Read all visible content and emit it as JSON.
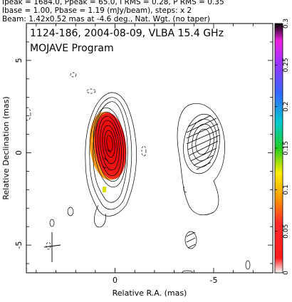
{
  "header": {
    "line1": "Ipeak = 1684.0, Ppeak = 65.0, I RMS = 0.28, P RMS = 0.35",
    "line2": "Ibase = 1.00, Pbase = 1.19 (mJy/beam), steps: x 2",
    "line3": "Beam: 1.42x0.52 mas at -4.6 deg., Nat. Wgt. (no taper)"
  },
  "chart_data": {
    "type": "heatmap",
    "title": "1124-186, 2004-08-09, VLBA 15.4 GHz",
    "subtitle": "MOJAVE Program",
    "xlabel": "Relative R.A. (mas)",
    "ylabel": "Relative Declination (mas)",
    "xlim": [
      4.5,
      -8.0
    ],
    "ylim": [
      -6.5,
      7.0
    ],
    "x_ticks": [
      {
        "value": 0,
        "label": "0"
      },
      {
        "value": -5,
        "label": "-5"
      }
    ],
    "y_ticks": [
      {
        "value": 5,
        "label": "5"
      },
      {
        "value": 0,
        "label": "0"
      },
      {
        "value": -5,
        "label": "-5"
      }
    ],
    "colorbar": {
      "min": 0,
      "max": 0.3,
      "ticks": [
        {
          "value": 0,
          "label": "0"
        },
        {
          "value": 0.05,
          "label": "0.05"
        },
        {
          "value": 0.1,
          "label": "0.1"
        },
        {
          "value": 0.15,
          "label": "0.15"
        },
        {
          "value": 0.2,
          "label": "0.2"
        },
        {
          "value": 0.25,
          "label": "0.25"
        },
        {
          "value": 0.3,
          "label": "0.3"
        }
      ]
    },
    "beam": {
      "major_mas": 1.42,
      "minor_mas": 0.52,
      "pa_deg": -4.6
    },
    "core": {
      "ra": 0.1,
      "dec": 0.0
    },
    "grid": false,
    "colors": {
      "polarized_core": "#ee1111",
      "contours": "#000000"
    }
  }
}
